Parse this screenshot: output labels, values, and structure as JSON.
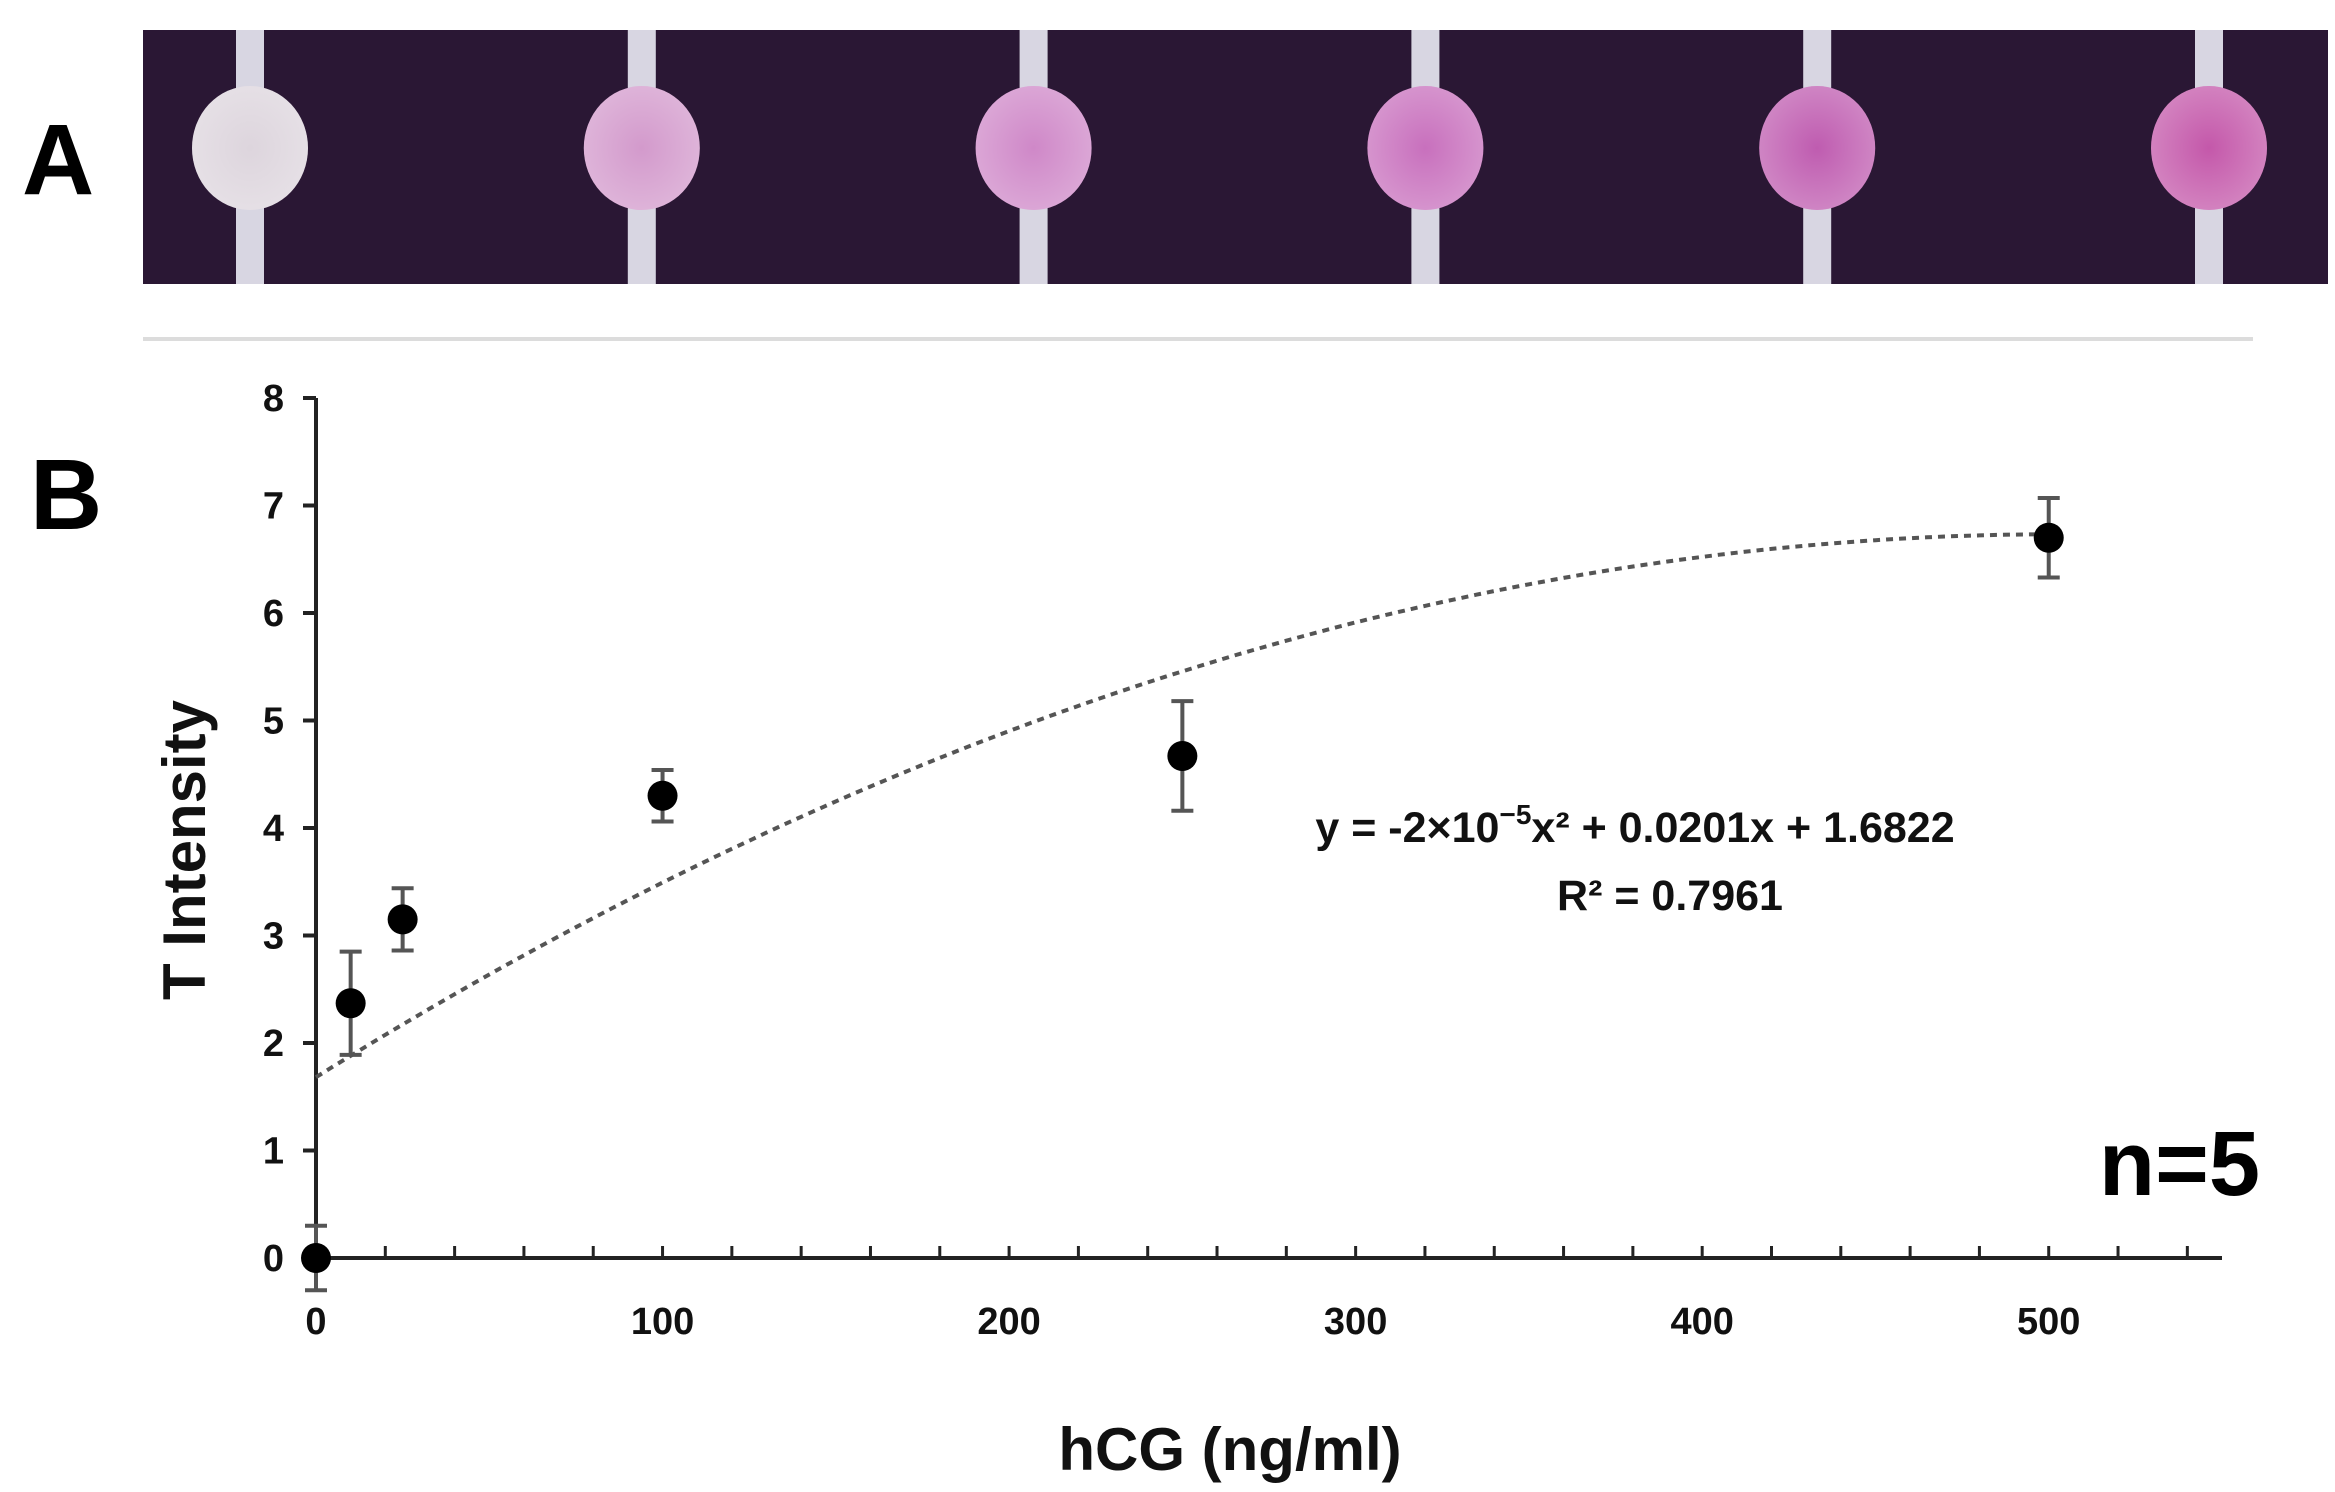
{
  "panels": {
    "a_label": "A",
    "b_label": "B"
  },
  "chart_data": {
    "type": "scatter",
    "xlabel": "hCG (ng/ml)",
    "ylabel": "T Intensity",
    "xlim": [
      0,
      550
    ],
    "ylim": [
      0,
      8
    ],
    "xticks": [
      "0",
      "100",
      "200",
      "300",
      "400",
      "500"
    ],
    "yticks": [
      "0",
      "1",
      "2",
      "3",
      "4",
      "5",
      "6",
      "7",
      "8"
    ],
    "grid": false,
    "points": [
      {
        "x": 0,
        "y": 0.0,
        "err": 0.3
      },
      {
        "x": 10,
        "y": 2.37,
        "err": 0.48
      },
      {
        "x": 25,
        "y": 3.15,
        "err": 0.29
      },
      {
        "x": 100,
        "y": 4.3,
        "err": 0.24
      },
      {
        "x": 250,
        "y": 4.67,
        "err": 0.51
      },
      {
        "x": 500,
        "y": 6.7,
        "err": 0.37
      }
    ],
    "trendline": {
      "kind": "polynomial",
      "a": -2e-05,
      "b": 0.0201,
      "c": 1.6822,
      "style": "dotted"
    },
    "annotations": {
      "equation_prefix": "y = -2×10",
      "equation_exp": "−5",
      "equation_suffix": "x² + 0.0201x + 1.6822",
      "r_squared": "R² = 0.7961",
      "sample_size": "n=5"
    },
    "colors": {
      "marker": "#000000",
      "errorbar": "#555555",
      "trendline": "#555555",
      "axis": "#222222"
    }
  },
  "strip": {
    "background": "#2a1734",
    "spots": [
      {
        "fill": "#ddd5dd"
      },
      {
        "fill": "#d39acc"
      },
      {
        "fill": "#cf88c8"
      },
      {
        "fill": "#c870bd"
      },
      {
        "fill": "#bf5cb0"
      },
      {
        "fill": "#c458aa"
      }
    ]
  }
}
